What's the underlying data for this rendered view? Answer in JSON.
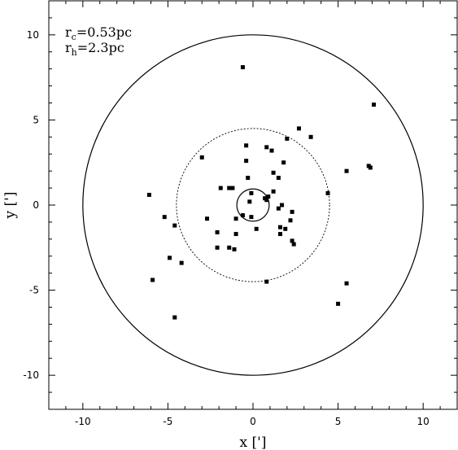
{
  "chart_data": {
    "type": "scatter",
    "title": "",
    "xlabel": "x [']",
    "ylabel": "y [']",
    "xlim": [
      -12,
      12
    ],
    "ylim": [
      -12,
      12
    ],
    "xticks": [
      -10,
      -5,
      0,
      5,
      10
    ],
    "yticks": [
      -10,
      -5,
      0,
      5,
      10
    ],
    "grid": false,
    "annotations": [
      {
        "main": "r",
        "sub": "c",
        "rest": "=0.53pc"
      },
      {
        "main": "r",
        "sub": "h",
        "rest": "=2.3pc"
      }
    ],
    "circles": [
      {
        "center": [
          0,
          0
        ],
        "radius": 10,
        "style": "solid"
      },
      {
        "center": [
          0,
          0
        ],
        "radius": 4.5,
        "style": "dotted"
      },
      {
        "center": [
          0,
          0
        ],
        "radius": 0.95,
        "style": "solid"
      }
    ],
    "points": [
      [
        -0.6,
        8.1
      ],
      [
        7.1,
        5.9
      ],
      [
        2.7,
        4.5
      ],
      [
        3.4,
        4.0
      ],
      [
        2.0,
        3.9
      ],
      [
        -0.4,
        3.5
      ],
      [
        0.8,
        3.4
      ],
      [
        1.1,
        3.2
      ],
      [
        -3.0,
        2.8
      ],
      [
        -0.4,
        2.6
      ],
      [
        1.8,
        2.5
      ],
      [
        6.8,
        2.3
      ],
      [
        6.9,
        2.2
      ],
      [
        5.5,
        2.0
      ],
      [
        1.2,
        1.9
      ],
      [
        1.5,
        1.6
      ],
      [
        -0.3,
        1.6
      ],
      [
        -1.9,
        1.0
      ],
      [
        -1.4,
        1.0
      ],
      [
        -1.2,
        1.0
      ],
      [
        1.2,
        0.8
      ],
      [
        -0.1,
        0.7
      ],
      [
        4.4,
        0.7
      ],
      [
        -6.1,
        0.6
      ],
      [
        0.9,
        0.5
      ],
      [
        0.7,
        0.4
      ],
      [
        0.8,
        0.3
      ],
      [
        -0.2,
        0.2
      ],
      [
        1.7,
        0.0
      ],
      [
        1.5,
        -0.2
      ],
      [
        2.3,
        -0.4
      ],
      [
        -0.6,
        -0.6
      ],
      [
        -5.2,
        -0.7
      ],
      [
        -0.1,
        -0.7
      ],
      [
        -2.7,
        -0.8
      ],
      [
        -1.0,
        -0.8
      ],
      [
        2.2,
        -0.9
      ],
      [
        -4.6,
        -1.2
      ],
      [
        1.6,
        -1.3
      ],
      [
        1.9,
        -1.4
      ],
      [
        0.2,
        -1.4
      ],
      [
        -2.1,
        -1.6
      ],
      [
        -1.0,
        -1.7
      ],
      [
        1.6,
        -1.7
      ],
      [
        2.3,
        -2.1
      ],
      [
        2.4,
        -2.3
      ],
      [
        -2.1,
        -2.5
      ],
      [
        -1.4,
        -2.5
      ],
      [
        -1.1,
        -2.6
      ],
      [
        -4.9,
        -3.1
      ],
      [
        -4.2,
        -3.4
      ],
      [
        -5.9,
        -4.4
      ],
      [
        0.8,
        -4.5
      ],
      [
        5.5,
        -4.6
      ],
      [
        5.0,
        -5.8
      ],
      [
        -4.6,
        -6.6
      ]
    ]
  }
}
